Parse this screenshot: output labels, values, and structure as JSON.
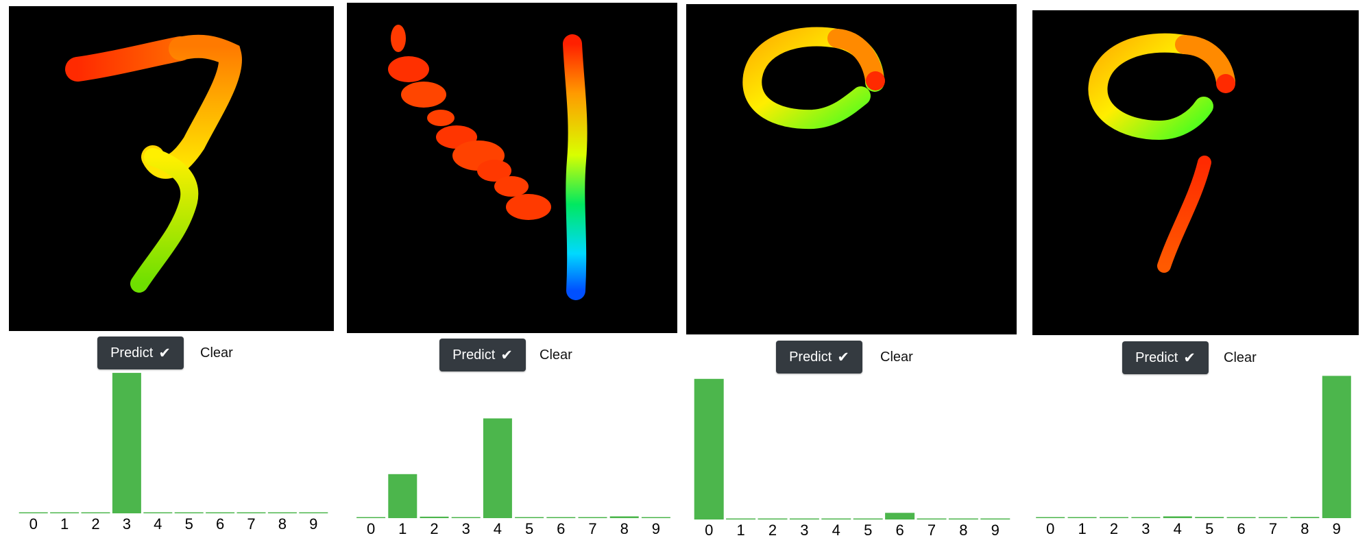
{
  "colors": {
    "canvas_bg": "#000000",
    "bar": "#4cb64c",
    "button_bg": "#343a40"
  },
  "panels": [
    {
      "predict_label": "Predict",
      "predict_icon": "check-icon",
      "clear_label": "Clear",
      "chart_data": {
        "type": "bar",
        "categories": [
          "0",
          "1",
          "2",
          "3",
          "4",
          "5",
          "6",
          "7",
          "8",
          "9"
        ],
        "values": [
          0.0,
          0.0,
          0.0,
          0.99,
          0.0,
          0.0,
          0.0,
          0.006,
          0.0,
          0.004
        ],
        "ylim": [
          0,
          1
        ]
      }
    },
    {
      "predict_label": "Predict",
      "predict_icon": "check-icon",
      "clear_label": "Clear",
      "chart_data": {
        "type": "bar",
        "categories": [
          "0",
          "1",
          "2",
          "3",
          "4",
          "5",
          "6",
          "7",
          "8",
          "9"
        ],
        "values": [
          0.002,
          0.3,
          0.01,
          0.005,
          0.68,
          0.0,
          0.002,
          0.002,
          0.012,
          0.002
        ],
        "ylim": [
          0,
          1
        ]
      }
    },
    {
      "predict_label": "Predict",
      "predict_icon": "check-icon",
      "clear_label": "Clear",
      "chart_data": {
        "type": "bar",
        "categories": [
          "0",
          "1",
          "2",
          "3",
          "4",
          "5",
          "6",
          "7",
          "8",
          "9"
        ],
        "values": [
          0.95,
          0.0,
          0.0,
          0.0,
          0.0,
          0.004,
          0.045,
          0.0,
          0.004,
          0.006
        ],
        "ylim": [
          0,
          1
        ]
      }
    },
    {
      "predict_label": "Predict",
      "predict_icon": "check-icon",
      "clear_label": "Clear",
      "chart_data": {
        "type": "bar",
        "categories": [
          "0",
          "1",
          "2",
          "3",
          "4",
          "5",
          "6",
          "7",
          "8",
          "9"
        ],
        "values": [
          0.004,
          0.0,
          0.002,
          0.0,
          0.012,
          0.008,
          0.0,
          0.0,
          0.008,
          0.97
        ],
        "ylim": [
          0,
          1
        ]
      }
    }
  ]
}
